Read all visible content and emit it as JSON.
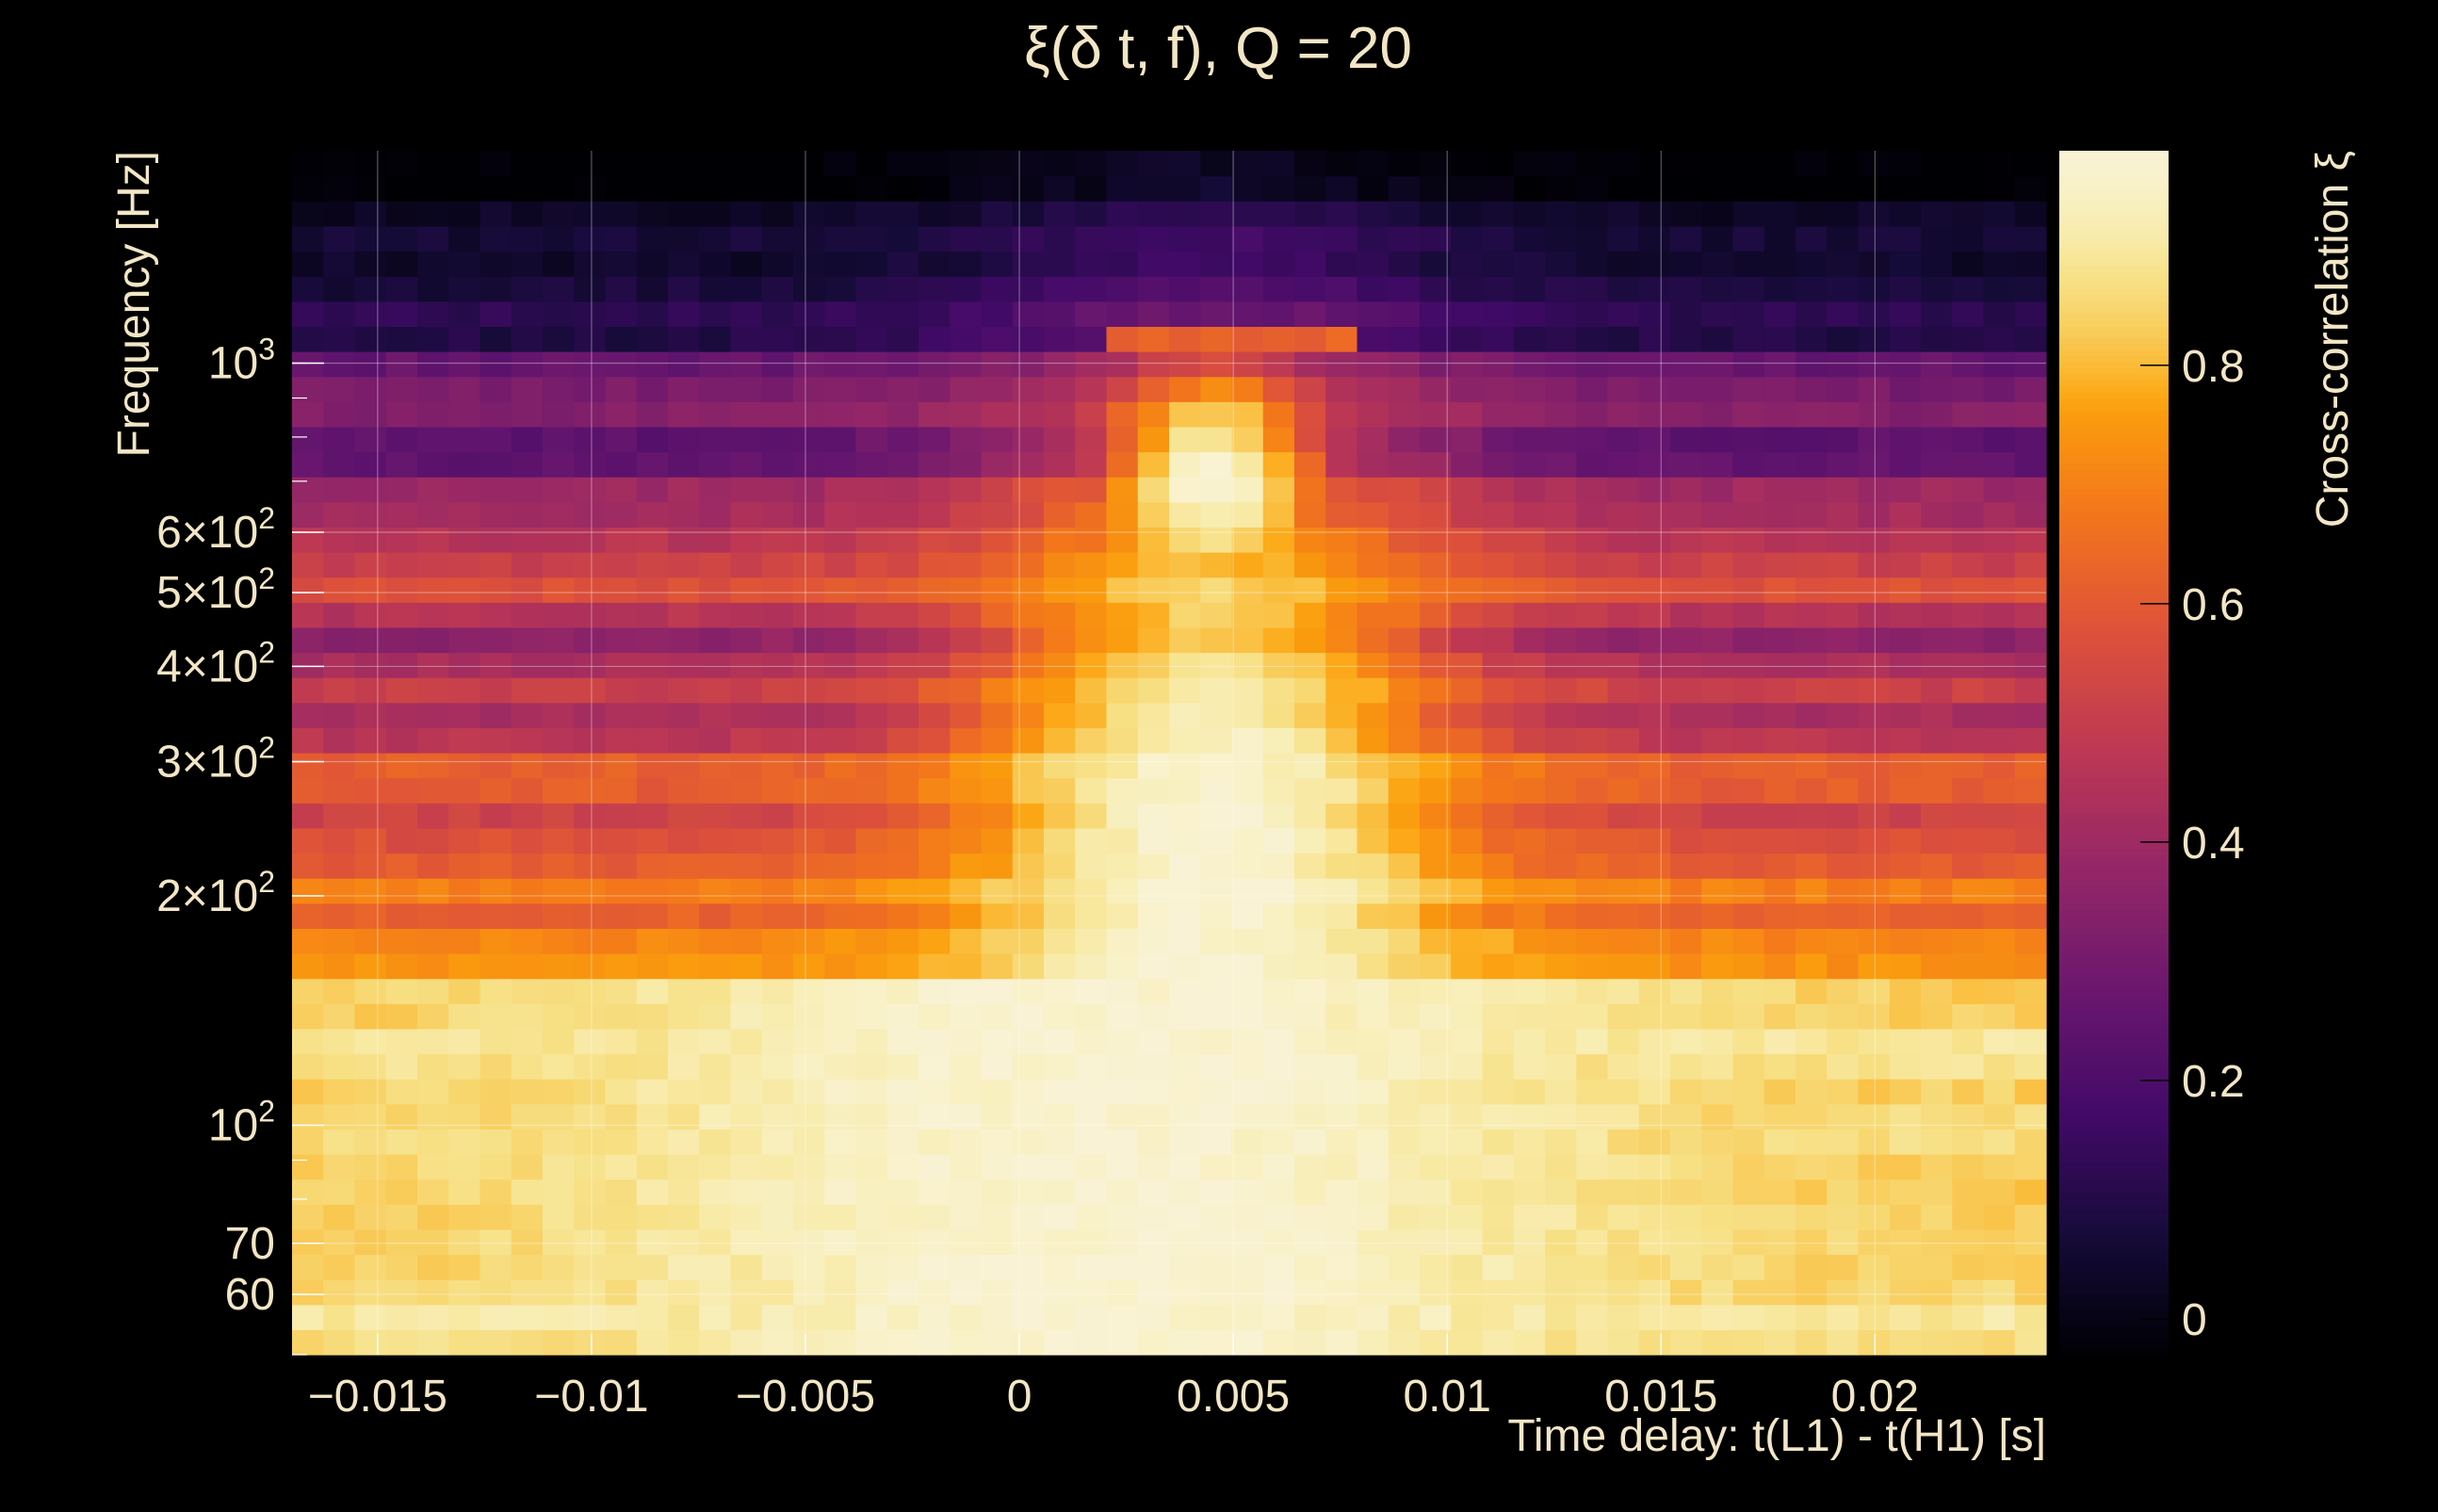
{
  "chart_data": {
    "type": "heatmap",
    "title": "ξ(δ t, f), Q = 20",
    "xlabel": "Time delay: t(L1) - t(H1) [s]",
    "ylabel": "Frequency [Hz]",
    "colorbar_label": "Cross-correlation ξ",
    "xlim": [
      -0.017,
      0.024
    ],
    "ylim": [
      50,
      1900
    ],
    "y_scale": "log",
    "grid": true,
    "colormap": "inferno",
    "colorbar_range": [
      -0.03,
      0.98
    ],
    "x_ticks": [
      {
        "value": -0.015,
        "label": "−0.015"
      },
      {
        "value": -0.01,
        "label": "−0.01"
      },
      {
        "value": -0.005,
        "label": "−0.005"
      },
      {
        "value": 0,
        "label": "0"
      },
      {
        "value": 0.005,
        "label": "0.005"
      },
      {
        "value": 0.01,
        "label": "0.01"
      },
      {
        "value": 0.015,
        "label": "0.015"
      },
      {
        "value": 0.02,
        "label": "0.02"
      }
    ],
    "y_ticks": [
      {
        "value": 60,
        "mantissa": "60",
        "power": ""
      },
      {
        "value": 70,
        "mantissa": "70",
        "power": ""
      },
      {
        "value": 100,
        "mantissa": "10",
        "power": "2"
      },
      {
        "value": 200,
        "mantissa": "2×10",
        "power": "2"
      },
      {
        "value": 300,
        "mantissa": "3×10",
        "power": "2"
      },
      {
        "value": 400,
        "mantissa": "4×10",
        "power": "2"
      },
      {
        "value": 500,
        "mantissa": "5×10",
        "power": "2"
      },
      {
        "value": 600,
        "mantissa": "6×10",
        "power": "2"
      },
      {
        "value": 1000,
        "mantissa": "10",
        "power": "3"
      }
    ],
    "colorbar_ticks": [
      {
        "value": 0.0,
        "label": "0"
      },
      {
        "value": 0.2,
        "label": "0.2"
      },
      {
        "value": 0.4,
        "label": "0.4"
      },
      {
        "value": 0.6,
        "label": "0.6"
      },
      {
        "value": 0.8,
        "label": "0.8"
      }
    ],
    "peak": {
      "x": 0.0045,
      "y": 700,
      "value": 0.98
    }
  },
  "colors": {
    "background": "#000000",
    "text": "#f3e6c6",
    "grid": "#ffffff"
  }
}
